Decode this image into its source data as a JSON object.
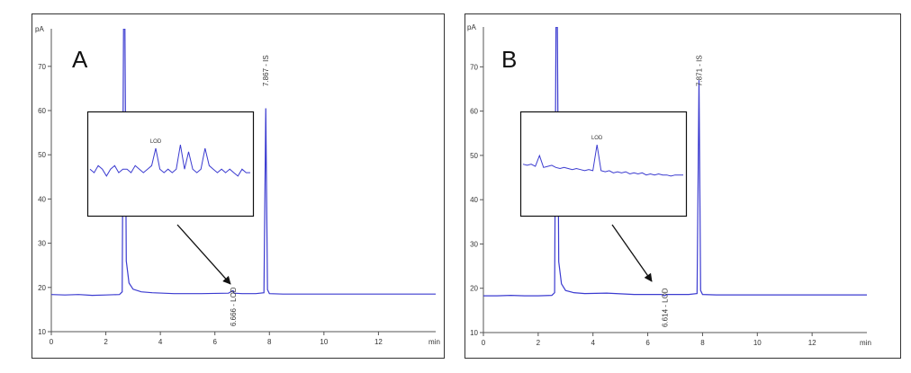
{
  "chart_data": [
    {
      "type": "line",
      "panel_label": "A",
      "ylabel": "pA",
      "xlabel": "min",
      "xlim": [
        0,
        14.1
      ],
      "ylim": [
        10,
        78.5
      ],
      "xticks": [
        0,
        2,
        4,
        6,
        8,
        10,
        12
      ],
      "yticks": [
        10,
        20,
        30,
        40,
        50,
        60,
        70
      ],
      "x": [
        0,
        0.5,
        1,
        1.5,
        2,
        2.5,
        2.6,
        2.65,
        2.7,
        2.75,
        2.85,
        3,
        3.3,
        3.7,
        4.5,
        5.5,
        6.5,
        6.666,
        6.7,
        7,
        7.5,
        7.8,
        7.867,
        7.93,
        8.0,
        8.5,
        9,
        10,
        11,
        12,
        13,
        14.1
      ],
      "series": [
        {
          "color": "#3b3bd0",
          "values": [
            18.4,
            18.3,
            18.4,
            18.2,
            18.3,
            18.4,
            19,
            78.5,
            78.5,
            26,
            21,
            19.6,
            19,
            18.8,
            18.6,
            18.6,
            18.7,
            19.3,
            18.7,
            18.6,
            18.6,
            18.8,
            60.5,
            19.5,
            18.6,
            18.5,
            18.5,
            18.5,
            18.5,
            18.5,
            18.5,
            18.5
          ]
        }
      ],
      "annotations": [
        "7.867 - IS",
        "6.666 - LOD"
      ],
      "inset": {
        "label": "LOD",
        "values": [
          50,
          49,
          51,
          50,
          48,
          50,
          51,
          49,
          50,
          50,
          49,
          51,
          50,
          49,
          50,
          51,
          56,
          50,
          49,
          50,
          49,
          50,
          57,
          50,
          55,
          50,
          49,
          50,
          56,
          51,
          50,
          49,
          50,
          49,
          50,
          49,
          48,
          50,
          49,
          49
        ]
      }
    },
    {
      "type": "line",
      "panel_label": "B",
      "ylabel": "pA",
      "xlabel": "min",
      "xlim": [
        0,
        14
      ],
      "ylim": [
        10,
        79
      ],
      "xticks": [
        0,
        2,
        4,
        6,
        8,
        10,
        12
      ],
      "yticks": [
        10,
        20,
        30,
        40,
        50,
        60,
        70
      ],
      "x": [
        0,
        0.5,
        1,
        1.5,
        2,
        2.5,
        2.6,
        2.65,
        2.7,
        2.75,
        2.85,
        3,
        3.3,
        3.7,
        4.5,
        5.5,
        6.5,
        6.614,
        6.7,
        7,
        7.5,
        7.8,
        7.871,
        7.93,
        8.0,
        8.5,
        9,
        10,
        11,
        12,
        13,
        14
      ],
      "series": [
        {
          "color": "#3b3bd0",
          "values": [
            18.3,
            18.3,
            18.4,
            18.3,
            18.3,
            18.4,
            19,
            79,
            79,
            26,
            21,
            19.5,
            19,
            18.8,
            18.9,
            18.6,
            18.6,
            18.3,
            18.6,
            18.6,
            18.6,
            18.8,
            67,
            19.5,
            18.6,
            18.5,
            18.5,
            18.5,
            18.5,
            18.5,
            18.5,
            18.5
          ]
        }
      ],
      "annotations": [
        "7.871 - IS",
        "6.614 - LOD"
      ],
      "inset": {
        "label": "LOD",
        "values": [
          60,
          59,
          60,
          58,
          68,
          57,
          58,
          59,
          57,
          56,
          57,
          56,
          55,
          56,
          55,
          54,
          55,
          54,
          78,
          54,
          53,
          54,
          52,
          53,
          52,
          53,
          51,
          52,
          51,
          52,
          50,
          51,
          50,
          51,
          50,
          50,
          49,
          50,
          50,
          50
        ]
      }
    }
  ]
}
